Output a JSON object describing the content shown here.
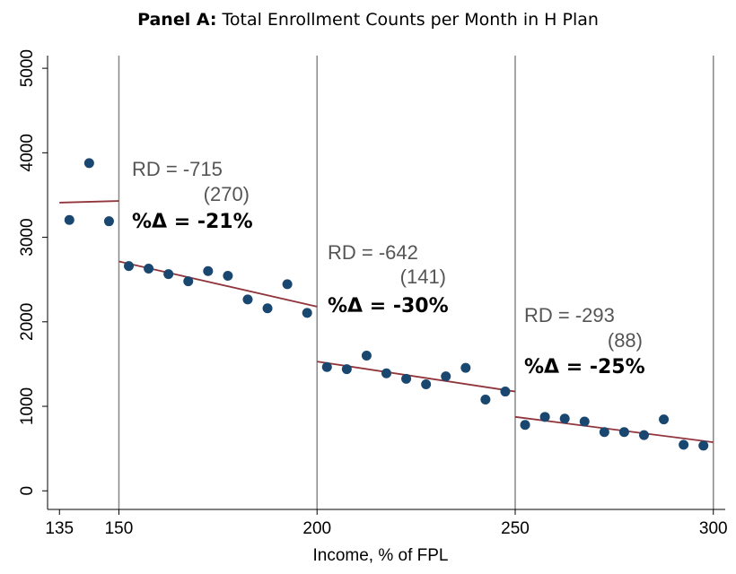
{
  "chart_data": {
    "type": "scatter",
    "title_label": "Panel A:",
    "title": "Total Enrollment Counts per Month in H Plan",
    "x_label": "Income, % of FPL",
    "xlim": [
      132,
      303
    ],
    "ylim": [
      -220,
      5150
    ],
    "xticks": [
      135,
      150,
      200,
      250,
      300
    ],
    "yticks": [
      0,
      1000,
      2000,
      3000,
      4000,
      5000
    ],
    "vlines": [
      150,
      200,
      250,
      300
    ],
    "series": [
      {
        "color": "#1a476f",
        "x": [
          137.5,
          142.5,
          147.5
        ],
        "values": [
          3205,
          3878,
          3190
        ]
      },
      {
        "color": "#1a476f",
        "x": [
          152.5,
          157.5,
          162.5,
          167.5,
          172.5,
          177.5,
          182.5,
          187.5,
          192.5,
          197.5
        ],
        "values": [
          2660,
          2630,
          2565,
          2480,
          2600,
          2545,
          2265,
          2160,
          2445,
          2105
        ]
      },
      {
        "color": "#1a476f",
        "x": [
          202.5,
          207.5,
          212.5,
          217.5,
          222.5,
          227.5,
          232.5,
          237.5,
          242.5,
          247.5
        ],
        "values": [
          1465,
          1440,
          1600,
          1390,
          1325,
          1260,
          1355,
          1455,
          1080,
          1175
        ]
      },
      {
        "color": "#1a476f",
        "x": [
          252.5,
          257.5,
          262.5,
          267.5,
          272.5,
          277.5,
          282.5,
          287.5,
          292.5,
          297.5
        ],
        "values": [
          780,
          875,
          855,
          820,
          695,
          695,
          660,
          845,
          545,
          535
        ]
      }
    ],
    "fits": [
      {
        "color": "#90353b",
        "x": [
          135,
          150
        ],
        "values": [
          3410,
          3430
        ]
      },
      {
        "color": "#90353b",
        "x": [
          150,
          200
        ],
        "values": [
          2715,
          2180
        ]
      },
      {
        "color": "#90353b",
        "x": [
          200,
          250
        ],
        "values": [
          1530,
          1175
        ]
      },
      {
        "color": "#90353b",
        "x": [
          250,
          300
        ],
        "values": [
          875,
          575
        ]
      }
    ],
    "annotations": [
      {
        "rd": "RD = -715",
        "se": "(270)",
        "pct": "%Δ = -21%"
      },
      {
        "rd": "RD = -642",
        "se": "(141)",
        "pct": "%Δ = -30%"
      },
      {
        "rd": "RD = -293",
        "se": "(88)",
        "pct": "%Δ = -25%"
      }
    ]
  }
}
